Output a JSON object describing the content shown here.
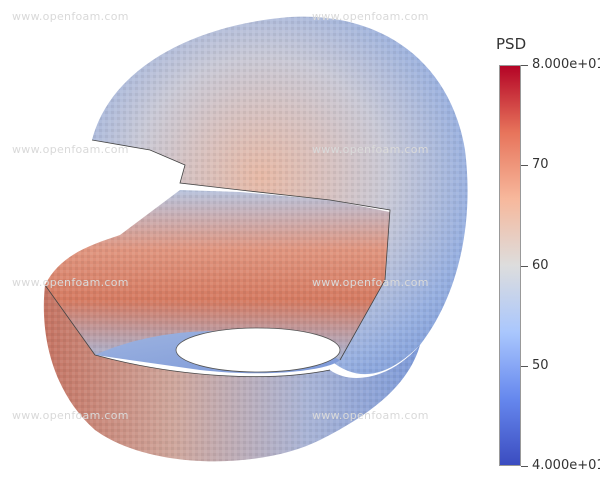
{
  "watermark_text": "www.openfoam.com",
  "legend": {
    "title": "PSD",
    "ticks": [
      {
        "label": "8.000e+01",
        "value": 80
      },
      {
        "label": "70",
        "value": 70
      },
      {
        "label": "60",
        "value": 60
      },
      {
        "label": "50",
        "value": 50
      },
      {
        "label": "4.000e+01",
        "value": 40
      }
    ],
    "range": [
      40,
      80
    ],
    "colormap": [
      "#3b4cc0",
      "#6688ee",
      "#aac7fd",
      "#dddddd",
      "#f7b89c",
      "#e7745b",
      "#b40426"
    ]
  }
}
